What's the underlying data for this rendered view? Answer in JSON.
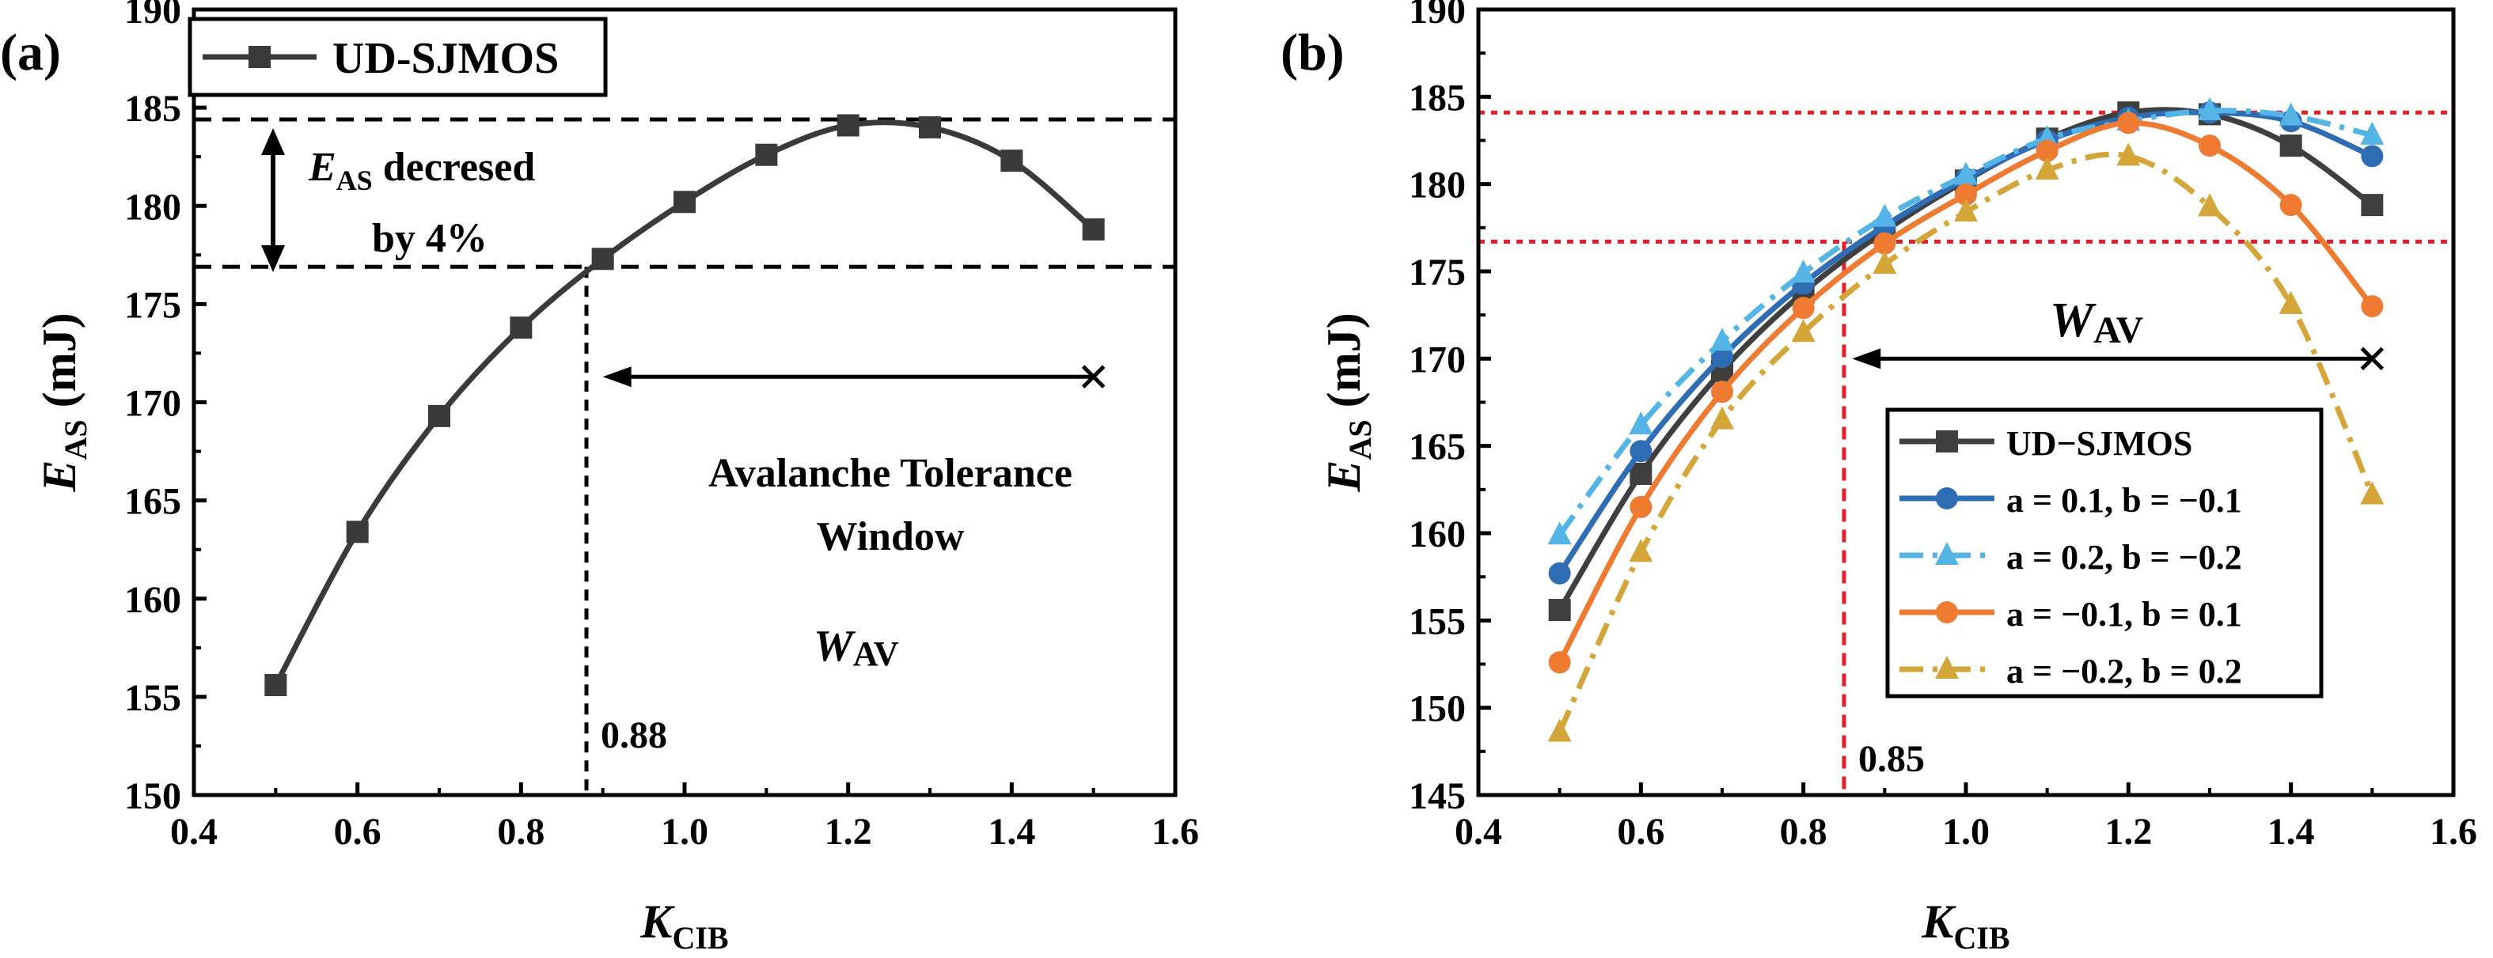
{
  "chart_data": [
    {
      "panel": "(a)",
      "type": "line",
      "xlabel": "K",
      "xlabel_sub": "CIB",
      "ylabel": "E",
      "ylabel_sub": "AS",
      "ylabel_unit": " (mJ)",
      "xlim": [
        0.4,
        1.6
      ],
      "ylim": [
        150,
        190
      ],
      "xticks": [
        0.4,
        0.6,
        0.8,
        1.0,
        1.2,
        1.4,
        1.6
      ],
      "xtick_labels": [
        "0.4",
        "0.6",
        "0.8",
        "1.0",
        "1.2",
        "1.4",
        "1.6"
      ],
      "yticks": [
        150,
        155,
        160,
        165,
        170,
        175,
        180,
        185,
        190
      ],
      "ytick_labels": [
        "150",
        "155",
        "160",
        "165",
        "170",
        "175",
        "180",
        "185",
        "190"
      ],
      "legend_position": "top-left",
      "series": [
        {
          "name": "UD-SJMOS",
          "color": "#3a3a3a",
          "marker": "square",
          "x": [
            0.5,
            0.6,
            0.7,
            0.8,
            0.9,
            1.0,
            1.1,
            1.2,
            1.3,
            1.4,
            1.5
          ],
          "y": [
            155.6,
            163.4,
            169.3,
            173.8,
            177.3,
            180.2,
            182.6,
            184.1,
            184.0,
            182.3,
            178.8
          ]
        }
      ],
      "hlines": [
        184.4,
        176.9
      ],
      "vline_x": 0.88,
      "vline_label": "0.88",
      "annotations": {
        "decrease_label_E": "E",
        "decrease_label_sub": "AS",
        "decrease_label_rest": " decresed",
        "decrease_label_line2": "by 4%",
        "window_label_line1": "Avalanche Tolerance",
        "window_label_line2": "Window",
        "wav_label_W": "W",
        "wav_label_sub": "AV",
        "window_arrow": {
          "x_start": 1.5,
          "x_end": 0.9,
          "y": 171.3
        }
      }
    },
    {
      "panel": "(b)",
      "type": "line",
      "xlabel": "K",
      "xlabel_sub": "CIB",
      "ylabel": "E",
      "ylabel_sub": "AS",
      "ylabel_unit": " (mJ)",
      "xlim": [
        0.4,
        1.6
      ],
      "ylim": [
        145,
        190
      ],
      "xticks": [
        0.4,
        0.6,
        0.8,
        1.0,
        1.2,
        1.4,
        1.6
      ],
      "xtick_labels": [
        "0.4",
        "0.6",
        "0.8",
        "1.0",
        "1.2",
        "1.4",
        "1.6"
      ],
      "yticks": [
        145,
        150,
        155,
        160,
        165,
        170,
        175,
        180,
        185,
        190
      ],
      "ytick_labels": [
        "145",
        "150",
        "155",
        "160",
        "165",
        "170",
        "175",
        "180",
        "185",
        "190"
      ],
      "legend_position": "lower-right",
      "series": [
        {
          "name": "UD−SJMOS",
          "color": "#3f3f3f",
          "marker": "square",
          "dash": "solid",
          "x": [
            0.5,
            0.6,
            0.7,
            0.8,
            0.9,
            1.0,
            1.1,
            1.2,
            1.3,
            1.4,
            1.5
          ],
          "y": [
            155.6,
            163.4,
            169.3,
            173.8,
            177.3,
            180.2,
            182.6,
            184.1,
            184.0,
            182.2,
            178.8
          ]
        },
        {
          "name": "a = 0.1, b = −0.1",
          "color": "#2e6db4",
          "marker": "circle",
          "dash": "solid",
          "x": [
            0.5,
            0.6,
            0.7,
            0.8,
            0.9,
            1.0,
            1.1,
            1.2,
            1.3,
            1.4,
            1.5
          ],
          "y": [
            157.7,
            164.7,
            170.1,
            174.3,
            177.6,
            180.3,
            182.5,
            183.8,
            184.1,
            183.6,
            181.6
          ]
        },
        {
          "name": "a = 0.2, b = −0.2",
          "color": "#55b4e6",
          "marker": "triangle",
          "dash": "dash-dot",
          "x": [
            0.5,
            0.6,
            0.7,
            0.8,
            0.9,
            1.0,
            1.1,
            1.2,
            1.3,
            1.4,
            1.5
          ],
          "y": [
            159.9,
            166.2,
            171.0,
            174.9,
            178.1,
            180.5,
            182.6,
            183.6,
            184.2,
            183.9,
            182.8
          ]
        },
        {
          "name": "a = −0.1, b = 0.1",
          "color": "#ee7b31",
          "marker": "circle",
          "dash": "solid",
          "x": [
            0.5,
            0.6,
            0.7,
            0.8,
            0.9,
            1.0,
            1.1,
            1.2,
            1.3,
            1.4,
            1.5
          ],
          "y": [
            152.6,
            161.5,
            168.1,
            172.9,
            176.6,
            179.4,
            181.9,
            183.5,
            182.2,
            178.8,
            173.0
          ]
        },
        {
          "name": "a = −0.2, b = 0.2",
          "color": "#d4a63a",
          "marker": "triangle",
          "dash": "dash-dot",
          "x": [
            0.5,
            0.6,
            0.7,
            0.8,
            0.9,
            1.0,
            1.1,
            1.2,
            1.3,
            1.4,
            1.5
          ],
          "y": [
            148.6,
            158.9,
            166.5,
            171.5,
            175.4,
            178.4,
            180.8,
            181.6,
            178.7,
            173.1,
            162.2
          ]
        }
      ],
      "hlines": [
        184.1,
        176.7
      ],
      "hline_color": "#e0202a",
      "vline_x": 0.85,
      "vline_color": "#e0202a",
      "vline_label": "0.85",
      "annotations": {
        "wav_label_W": "W",
        "wav_label_sub": "AV",
        "window_arrow": {
          "x_start": 1.5,
          "x_end": 0.86,
          "y": 170.0
        }
      }
    }
  ]
}
